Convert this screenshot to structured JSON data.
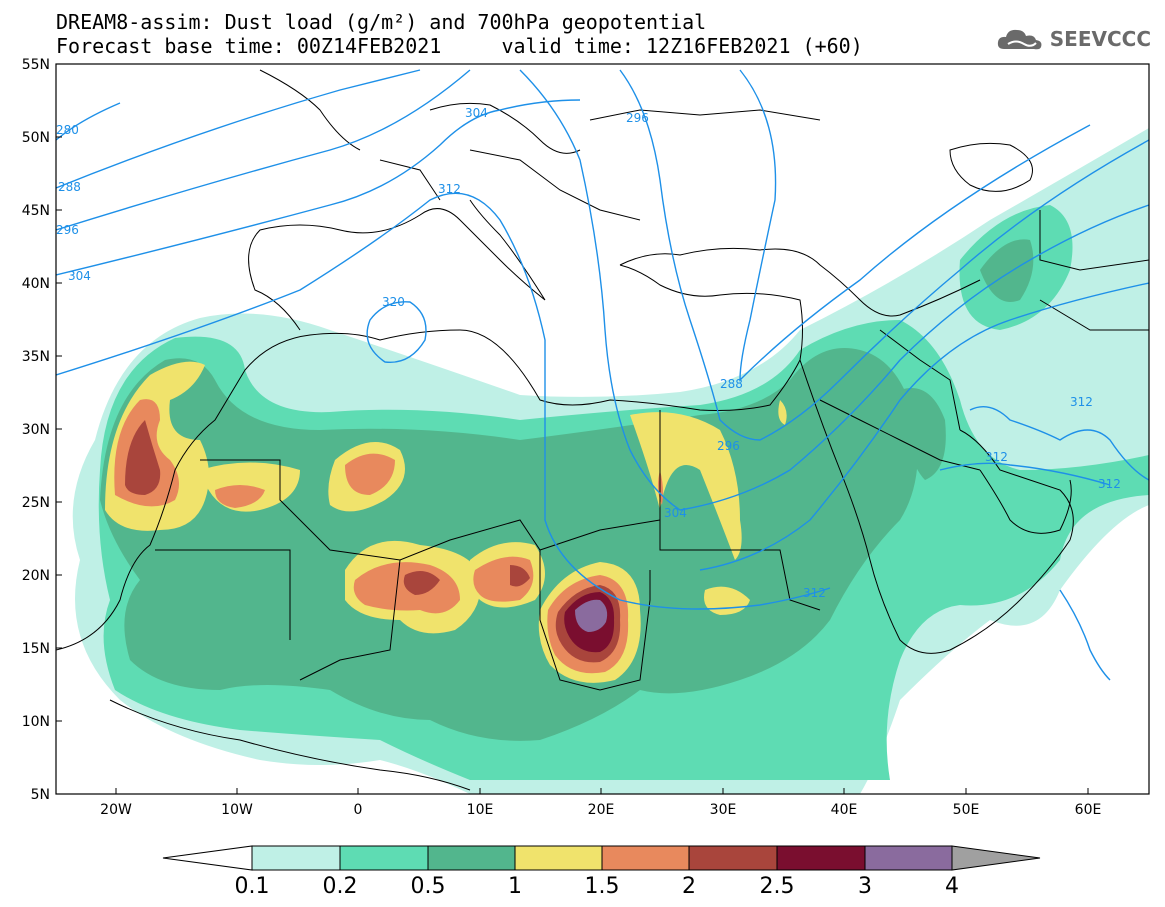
{
  "title": {
    "line1": "DREAM8-assim: Dust load (g/m²) and 700hPa geopotential",
    "line2": "Forecast base time: 00Z14FEB2021     valid time: 12Z16FEB2021 (+60)"
  },
  "logo": {
    "text": "SEEVCCC",
    "icon": "cloud-logo-icon"
  },
  "map": {
    "lat_labels": [
      "55N",
      "50N",
      "45N",
      "40N",
      "35N",
      "30N",
      "25N",
      "20N",
      "15N",
      "10N",
      "5N"
    ],
    "lon_labels": [
      "20W",
      "10W",
      "0",
      "10E",
      "20E",
      "30E",
      "40E",
      "50E",
      "60E"
    ],
    "contour_labels": [
      "280",
      "288",
      "296",
      "304",
      "312",
      "320",
      "304",
      "296",
      "288",
      "296",
      "304",
      "312",
      "312",
      "312",
      "312"
    ]
  },
  "colorbar": {
    "levels": [
      "0.1",
      "0.2",
      "0.5",
      "1",
      "1.5",
      "2",
      "2.5",
      "3",
      "4"
    ],
    "colors": [
      "#ffffff",
      "#bff0e6",
      "#5edcb3",
      "#52b68d",
      "#f0e36c",
      "#e8895d",
      "#a9453c",
      "#7a0e2f",
      "#8a6b9e",
      "#a0a0a0"
    ]
  },
  "colors": {
    "contour": "#1e90e8",
    "border": "#000000"
  }
}
